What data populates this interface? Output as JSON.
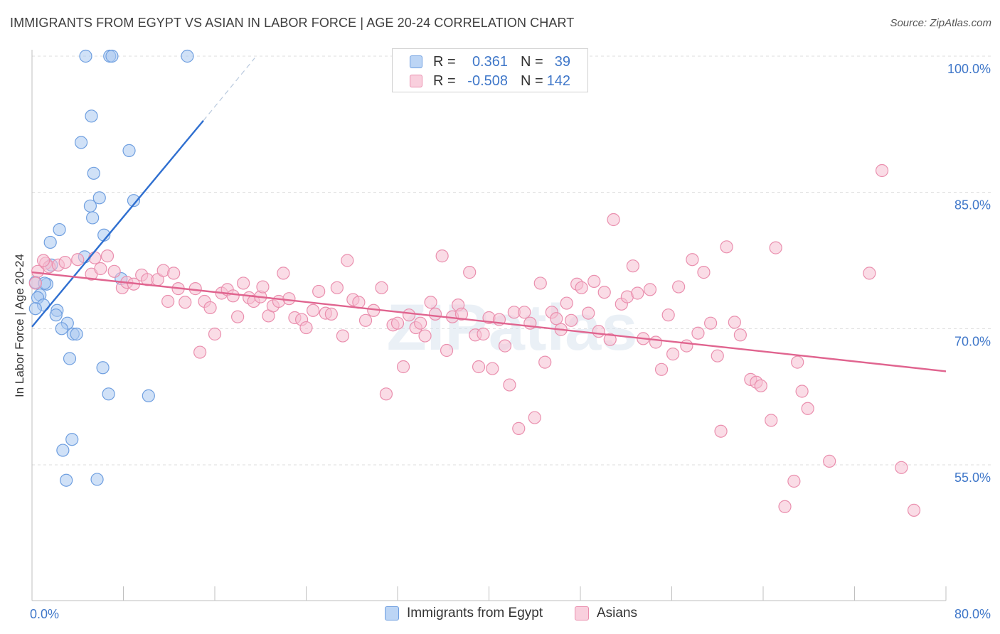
{
  "title": "IMMIGRANTS FROM EGYPT VS ASIAN IN LABOR FORCE | AGE 20-24 CORRELATION CHART",
  "source": "Source: ZipAtlas.com",
  "watermark": "ZIPatlas",
  "colors": {
    "blue_fill": "#a9c8f0",
    "blue_stroke": "#6f9fe0",
    "blue_line": "#2f6fd0",
    "pink_fill": "#f6bfd1",
    "pink_stroke": "#ea8fae",
    "pink_line": "#e0648f",
    "tick_label": "#3f77c9",
    "grid": "#dddddd"
  },
  "legend": {
    "rows": [
      {
        "r_label": "R =",
        "r_value": "0.361",
        "n_label": "N =",
        "n_value": "39",
        "series": "blue"
      },
      {
        "r_label": "R =",
        "r_value": "-0.508",
        "n_label": "N =",
        "n_value": "142",
        "series": "pink"
      }
    ]
  },
  "bottom_legend": [
    {
      "label": "Immigrants from Egypt",
      "series": "blue"
    },
    {
      "label": "Asians",
      "series": "pink"
    }
  ],
  "chart_data": {
    "type": "scatter",
    "title": "IMMIGRANTS FROM EGYPT VS ASIAN IN LABOR FORCE | AGE 20-24 CORRELATION CHART",
    "xlabel": "",
    "ylabel": "In Labor Force | Age 20-24",
    "xlim": [
      0,
      80
    ],
    "ylim": [
      40,
      102
    ],
    "x_tick_labels": [
      {
        "value": 0,
        "label": "0.0%"
      },
      {
        "value": 80,
        "label": "80.0%"
      }
    ],
    "y_tick_labels": [
      {
        "value": 100,
        "label": "100.0%"
      },
      {
        "value": 85,
        "label": "85.0%"
      },
      {
        "value": 70,
        "label": "70.0%"
      },
      {
        "value": 55,
        "label": "55.0%"
      }
    ],
    "grid": true,
    "legend_position": "top-center",
    "series": [
      {
        "name": "Immigrants from Egypt",
        "color": "blue",
        "trend": {
          "x": [
            0,
            15
          ],
          "y": [
            70.2,
            92.9
          ],
          "dashed_to": {
            "x": 19.5,
            "y": 99.8
          }
        },
        "points": [
          [
            4.7,
            100
          ],
          [
            6.8,
            100
          ],
          [
            7.0,
            100
          ],
          [
            13.6,
            100
          ],
          [
            5.2,
            93.4
          ],
          [
            4.3,
            90.5
          ],
          [
            8.5,
            89.6
          ],
          [
            5.4,
            87.1
          ],
          [
            5.9,
            84.4
          ],
          [
            8.9,
            84.1
          ],
          [
            5.1,
            83.5
          ],
          [
            5.3,
            82.2
          ],
          [
            6.3,
            80.3
          ],
          [
            2.4,
            80.9
          ],
          [
            1.6,
            79.5
          ],
          [
            4.6,
            77.9
          ],
          [
            1.7,
            77.0
          ],
          [
            7.8,
            75.5
          ],
          [
            0.3,
            75.1
          ],
          [
            1.3,
            74.9
          ],
          [
            0.7,
            73.7
          ],
          [
            0.5,
            73.4
          ],
          [
            1.0,
            72.6
          ],
          [
            0.3,
            72.2
          ],
          [
            2.2,
            72.0
          ],
          [
            2.1,
            71.5
          ],
          [
            3.1,
            70.6
          ],
          [
            2.6,
            70.0
          ],
          [
            3.6,
            69.4
          ],
          [
            3.9,
            69.4
          ],
          [
            3.3,
            66.7
          ],
          [
            6.2,
            65.7
          ],
          [
            6.7,
            62.8
          ],
          [
            10.2,
            62.6
          ],
          [
            3.5,
            57.8
          ],
          [
            2.7,
            56.6
          ],
          [
            3.0,
            53.3
          ],
          [
            5.7,
            53.4
          ],
          [
            1.1,
            75.0
          ]
        ]
      },
      {
        "name": "Asians",
        "color": "pink",
        "trend": {
          "x": [
            0,
            80
          ],
          "y": [
            76.2,
            65.3
          ]
        },
        "points": [
          [
            0.5,
            76.3
          ],
          [
            1.2,
            77.2
          ],
          [
            1.5,
            76.8
          ],
          [
            2.3,
            77.0
          ],
          [
            2.9,
            77.3
          ],
          [
            1.0,
            77.5
          ],
          [
            4.0,
            77.6
          ],
          [
            5.5,
            77.8
          ],
          [
            5.2,
            76.0
          ],
          [
            6.0,
            76.6
          ],
          [
            6.6,
            78.0
          ],
          [
            7.2,
            76.3
          ],
          [
            7.9,
            74.5
          ],
          [
            8.3,
            75.1
          ],
          [
            8.9,
            74.9
          ],
          [
            9.6,
            75.9
          ],
          [
            10.1,
            75.4
          ],
          [
            11.0,
            75.4
          ],
          [
            11.5,
            76.4
          ],
          [
            11.9,
            73.0
          ],
          [
            12.4,
            76.1
          ],
          [
            12.8,
            74.4
          ],
          [
            13.4,
            72.9
          ],
          [
            14.3,
            74.4
          ],
          [
            14.7,
            67.4
          ],
          [
            15.1,
            73.0
          ],
          [
            15.6,
            72.3
          ],
          [
            16.0,
            69.4
          ],
          [
            16.6,
            73.9
          ],
          [
            17.1,
            74.3
          ],
          [
            17.6,
            73.6
          ],
          [
            18.0,
            71.3
          ],
          [
            18.5,
            75.0
          ],
          [
            19.0,
            73.4
          ],
          [
            19.4,
            73.0
          ],
          [
            20.0,
            73.5
          ],
          [
            20.2,
            74.6
          ],
          [
            20.7,
            71.4
          ],
          [
            21.1,
            72.5
          ],
          [
            21.6,
            73.0
          ],
          [
            22.0,
            76.1
          ],
          [
            22.5,
            73.3
          ],
          [
            23.0,
            71.2
          ],
          [
            23.6,
            71.0
          ],
          [
            24.0,
            70.1
          ],
          [
            24.6,
            72.0
          ],
          [
            25.1,
            74.1
          ],
          [
            25.7,
            71.7
          ],
          [
            26.2,
            71.6
          ],
          [
            26.7,
            74.5
          ],
          [
            27.2,
            69.2
          ],
          [
            27.6,
            77.5
          ],
          [
            28.1,
            73.2
          ],
          [
            28.6,
            72.9
          ],
          [
            29.2,
            70.9
          ],
          [
            29.9,
            72.0
          ],
          [
            30.6,
            74.5
          ],
          [
            31.0,
            62.8
          ],
          [
            31.6,
            70.4
          ],
          [
            32.0,
            70.6
          ],
          [
            32.5,
            65.8
          ],
          [
            33.0,
            71.5
          ],
          [
            33.6,
            70.1
          ],
          [
            34.0,
            70.6
          ],
          [
            34.4,
            69.2
          ],
          [
            34.9,
            72.9
          ],
          [
            35.3,
            71.6
          ],
          [
            35.9,
            78.0
          ],
          [
            36.3,
            67.6
          ],
          [
            36.8,
            71.3
          ],
          [
            37.3,
            72.6
          ],
          [
            37.6,
            71.6
          ],
          [
            38.3,
            76.2
          ],
          [
            38.8,
            69.3
          ],
          [
            39.1,
            65.8
          ],
          [
            39.5,
            69.4
          ],
          [
            40.0,
            71.2
          ],
          [
            40.3,
            65.6
          ],
          [
            40.9,
            71.0
          ],
          [
            41.4,
            68.1
          ],
          [
            41.8,
            63.8
          ],
          [
            42.2,
            71.8
          ],
          [
            42.6,
            59.0
          ],
          [
            43.1,
            71.8
          ],
          [
            43.6,
            70.6
          ],
          [
            44.0,
            60.2
          ],
          [
            44.5,
            75.0
          ],
          [
            44.9,
            66.3
          ],
          [
            45.5,
            71.8
          ],
          [
            45.9,
            71.1
          ],
          [
            46.3,
            69.9
          ],
          [
            46.8,
            72.8
          ],
          [
            47.2,
            70.9
          ],
          [
            47.7,
            74.9
          ],
          [
            48.1,
            74.5
          ],
          [
            48.7,
            71.7
          ],
          [
            49.2,
            75.2
          ],
          [
            49.6,
            69.7
          ],
          [
            50.1,
            74.0
          ],
          [
            50.6,
            68.8
          ],
          [
            50.9,
            82.0
          ],
          [
            51.6,
            72.7
          ],
          [
            52.1,
            73.5
          ],
          [
            52.6,
            76.9
          ],
          [
            53.0,
            73.9
          ],
          [
            53.5,
            68.9
          ],
          [
            54.1,
            74.3
          ],
          [
            54.6,
            68.5
          ],
          [
            55.1,
            65.5
          ],
          [
            55.7,
            71.5
          ],
          [
            56.1,
            67.2
          ],
          [
            56.6,
            74.6
          ],
          [
            57.3,
            68.1
          ],
          [
            57.8,
            77.6
          ],
          [
            58.3,
            69.5
          ],
          [
            58.8,
            76.2
          ],
          [
            59.4,
            70.6
          ],
          [
            60.0,
            67.0
          ],
          [
            60.3,
            58.7
          ],
          [
            60.8,
            79.0
          ],
          [
            61.5,
            70.7
          ],
          [
            62.0,
            69.3
          ],
          [
            62.9,
            64.4
          ],
          [
            63.4,
            64.1
          ],
          [
            63.8,
            63.7
          ],
          [
            64.7,
            59.9
          ],
          [
            65.1,
            78.9
          ],
          [
            65.9,
            50.4
          ],
          [
            66.7,
            53.2
          ],
          [
            67.0,
            66.3
          ],
          [
            67.4,
            63.1
          ],
          [
            67.9,
            61.2
          ],
          [
            69.8,
            55.4
          ],
          [
            73.3,
            76.1
          ],
          [
            74.4,
            87.4
          ],
          [
            76.1,
            54.7
          ],
          [
            77.2,
            50.0
          ],
          [
            0.3,
            75.0
          ]
        ]
      }
    ]
  }
}
